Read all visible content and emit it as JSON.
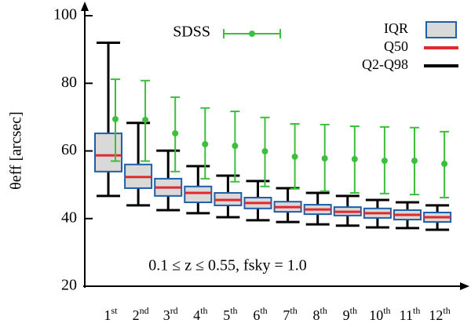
{
  "chart_data": {
    "type": "box",
    "ylabel": "θeff [arcsec]",
    "annotation": "0.1 ≤ z ≤ 0.55, fsky = 1.0",
    "categories": [
      "1st",
      "2nd",
      "3rd",
      "4th",
      "5th",
      "6th",
      "7th",
      "8th",
      "9th",
      "10th",
      "11th",
      "12th"
    ],
    "ylim": [
      20,
      100
    ],
    "yticks": [
      20,
      40,
      60,
      80,
      100
    ],
    "boxes": {
      "iqr_name": "IQR",
      "median_name": "Q50",
      "whisker_name": "Q2-Q98",
      "fill": "#d9d9d9",
      "edge": "#1f5fa8",
      "median_color": "#e0282e",
      "whisker_color": "#000000",
      "whisker_low": [
        46.7,
        43.9,
        42.5,
        41.6,
        40.4,
        39.5,
        39.0,
        38.3,
        37.9,
        37.4,
        37.2,
        36.7
      ],
      "q1": [
        53.9,
        49.0,
        46.7,
        44.8,
        43.9,
        43.0,
        42.0,
        41.3,
        40.9,
        40.2,
        39.7,
        39.0
      ],
      "median": [
        58.7,
        52.3,
        49.2,
        47.6,
        45.5,
        44.6,
        43.4,
        42.7,
        42.0,
        41.6,
        41.1,
        40.4
      ],
      "q3": [
        65.2,
        56.0,
        51.8,
        49.5,
        47.6,
        46.2,
        45.0,
        44.1,
        43.4,
        43.0,
        42.5,
        41.8
      ],
      "whisker_high": [
        92.0,
        68.3,
        60.1,
        55.5,
        52.7,
        51.1,
        49.0,
        47.6,
        46.7,
        45.5,
        44.8,
        43.9
      ]
    },
    "series": [
      {
        "name": "SDSS",
        "color": "#3dbf3d",
        "values": [
          69.4,
          69.2,
          65.2,
          62.0,
          61.5,
          59.9,
          58.3,
          57.8,
          57.6,
          57.1,
          57.1,
          56.2
        ],
        "low": [
          57.0,
          57.0,
          53.9,
          51.8,
          50.9,
          49.5,
          48.8,
          48.1,
          47.6,
          47.4,
          47.1,
          46.2
        ],
        "high": [
          81.2,
          80.8,
          75.9,
          72.7,
          71.7,
          69.9,
          68.0,
          67.8,
          67.3,
          67.1,
          66.9,
          65.7
        ]
      }
    ]
  }
}
